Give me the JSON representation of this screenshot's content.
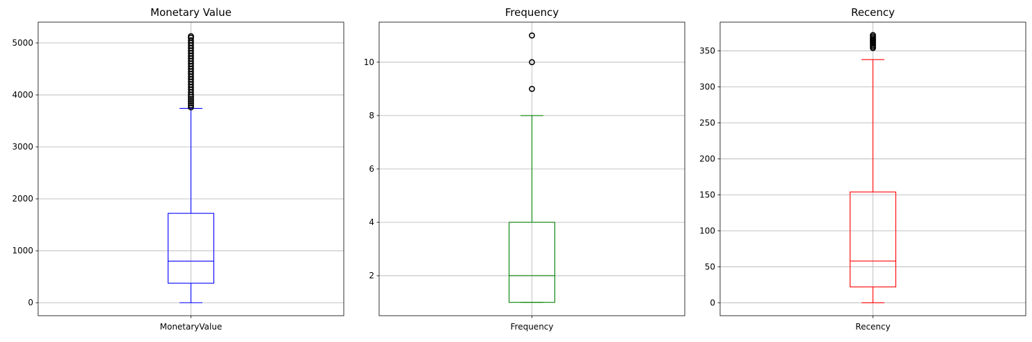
{
  "chart_data": [
    {
      "type": "box",
      "title": "Monetary Value",
      "color": "#0000ff",
      "categories": [
        "MonetaryValue"
      ],
      "ylim": [
        -250,
        5400
      ],
      "yticks": [
        0,
        1000,
        2000,
        3000,
        4000,
        5000
      ],
      "grid": true,
      "box": {
        "min": 0,
        "q1": 375,
        "median": 800,
        "q3": 1720,
        "max": 3740
      },
      "outliers": [
        3760,
        3800,
        3840,
        3880,
        3920,
        3960,
        4000,
        4050,
        4100,
        4150,
        4200,
        4250,
        4300,
        4350,
        4400,
        4450,
        4500,
        4550,
        4600,
        4650,
        4700,
        4750,
        4800,
        4850,
        4900,
        4950,
        5000,
        5050,
        5100,
        5130
      ]
    },
    {
      "type": "box",
      "title": "Frequency",
      "color": "#008000",
      "categories": [
        "Frequency"
      ],
      "ylim": [
        0.5,
        11.5
      ],
      "yticks": [
        2,
        4,
        6,
        8,
        10
      ],
      "grid": true,
      "box": {
        "min": 1,
        "q1": 1,
        "median": 2,
        "q3": 4,
        "max": 8
      },
      "outliers": [
        9,
        10,
        11
      ]
    },
    {
      "type": "box",
      "title": "Recency",
      "color": "#ff0000",
      "categories": [
        "Recency"
      ],
      "ylim": [
        -18,
        390
      ],
      "yticks": [
        0,
        50,
        100,
        150,
        200,
        250,
        300,
        350
      ],
      "grid": true,
      "box": {
        "min": 0,
        "q1": 22,
        "median": 58,
        "q3": 154,
        "max": 338
      },
      "outliers": [
        354,
        356,
        358,
        360,
        362,
        364,
        366,
        368,
        370,
        372
      ]
    }
  ]
}
